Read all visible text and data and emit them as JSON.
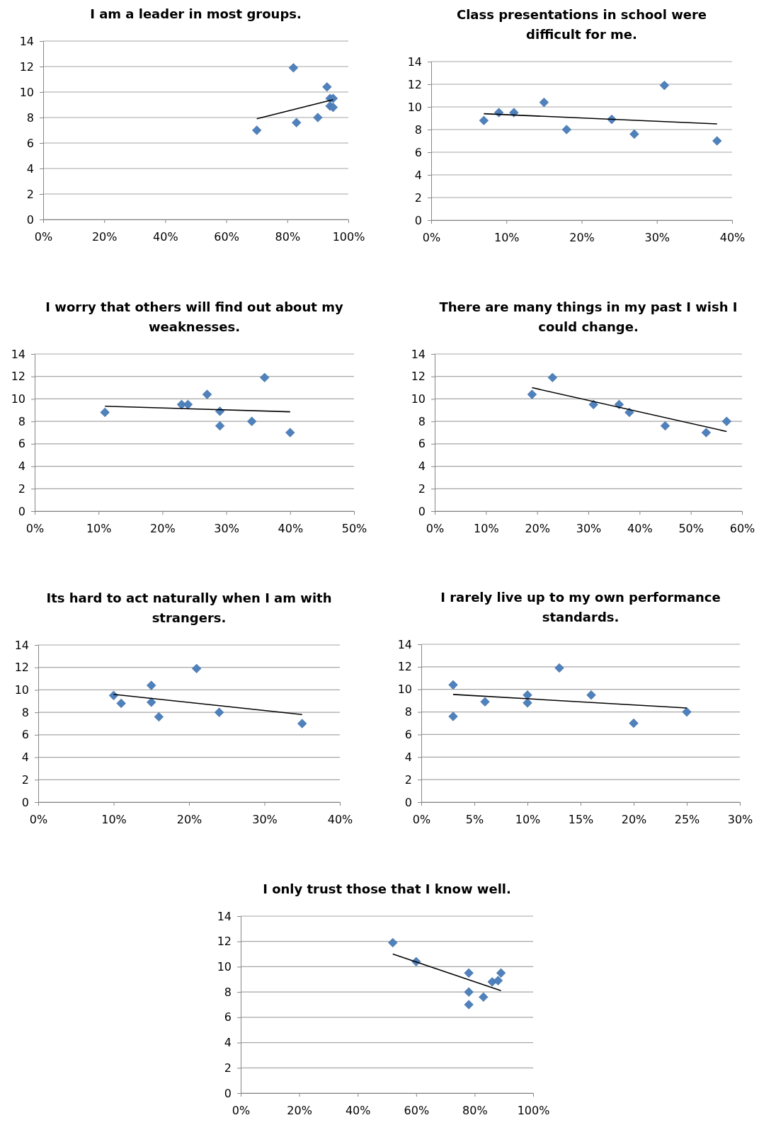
{
  "chart_data": [
    {
      "type": "scatter",
      "title": "I am a leader in most groups.",
      "xlim": [
        0,
        100
      ],
      "xticks": [
        {
          "value": 0,
          "label": "0%"
        },
        {
          "value": 20,
          "label": "20%"
        },
        {
          "value": 40,
          "label": "40%"
        },
        {
          "value": 60,
          "label": "60%"
        },
        {
          "value": 80,
          "label": "80%"
        },
        {
          "value": 100,
          "label": "100%"
        }
      ],
      "ylim": [
        0,
        14
      ],
      "yticks": [
        0,
        2,
        4,
        6,
        8,
        10,
        12,
        14
      ],
      "grid": "y",
      "series": [
        {
          "type": "scatter",
          "color": "#4f81bd",
          "marker": "diamond",
          "x": [
            70,
            82,
            83,
            90,
            93,
            94,
            95,
            94,
            95
          ],
          "values": [
            7.0,
            11.9,
            7.6,
            8.0,
            10.4,
            9.5,
            9.5,
            8.9,
            8.8
          ]
        },
        {
          "type": "line",
          "color": "#000000",
          "marker": "none",
          "line_style": "solid",
          "x": [
            70,
            95
          ],
          "values": [
            7.9,
            9.4
          ]
        }
      ]
    },
    {
      "type": "scatter",
      "title": "Class presentations in school were difficult for me.",
      "xlim": [
        0,
        40
      ],
      "xticks": [
        {
          "value": 0,
          "label": "0%"
        },
        {
          "value": 10,
          "label": "10%"
        },
        {
          "value": 20,
          "label": "20%"
        },
        {
          "value": 30,
          "label": "30%"
        },
        {
          "value": 40,
          "label": "40%"
        }
      ],
      "ylim": [
        0,
        14
      ],
      "yticks": [
        0,
        2,
        4,
        6,
        8,
        10,
        12,
        14
      ],
      "grid": "y",
      "series": [
        {
          "type": "scatter",
          "color": "#4f81bd",
          "marker": "diamond",
          "x": [
            7,
            9,
            11,
            15,
            18,
            24,
            27,
            31,
            38
          ],
          "values": [
            8.8,
            9.5,
            9.5,
            10.4,
            8.0,
            8.9,
            7.6,
            11.9,
            7.0
          ]
        },
        {
          "type": "line",
          "color": "#000000",
          "marker": "none",
          "line_style": "solid",
          "x": [
            7,
            38
          ],
          "values": [
            9.4,
            8.5
          ]
        }
      ]
    },
    {
      "type": "scatter",
      "title": "I worry that others will find out about my weaknesses.",
      "xlim": [
        0,
        50
      ],
      "xticks": [
        {
          "value": 0,
          "label": "0%"
        },
        {
          "value": 10,
          "label": "10%"
        },
        {
          "value": 20,
          "label": "20%"
        },
        {
          "value": 30,
          "label": "30%"
        },
        {
          "value": 40,
          "label": "40%"
        },
        {
          "value": 50,
          "label": "50%"
        }
      ],
      "ylim": [
        0,
        14
      ],
      "yticks": [
        0,
        2,
        4,
        6,
        8,
        10,
        12,
        14
      ],
      "grid": "y",
      "series": [
        {
          "type": "scatter",
          "color": "#4f81bd",
          "marker": "diamond",
          "x": [
            11,
            23,
            24,
            27,
            29,
            29,
            34,
            36,
            40
          ],
          "values": [
            8.8,
            9.5,
            9.5,
            10.4,
            8.9,
            7.6,
            8.0,
            11.9,
            7.0
          ]
        },
        {
          "type": "line",
          "color": "#000000",
          "marker": "none",
          "line_style": "solid",
          "x": [
            11,
            40
          ],
          "values": [
            9.35,
            8.85
          ]
        }
      ]
    },
    {
      "type": "scatter",
      "title": "There are many things in my past I wish I could change.",
      "xlim": [
        0,
        60
      ],
      "xticks": [
        {
          "value": 0,
          "label": "0%"
        },
        {
          "value": 10,
          "label": "10%"
        },
        {
          "value": 20,
          "label": "20%"
        },
        {
          "value": 30,
          "label": "30%"
        },
        {
          "value": 40,
          "label": "40%"
        },
        {
          "value": 50,
          "label": "50%"
        },
        {
          "value": 60,
          "label": "60%"
        }
      ],
      "ylim": [
        0,
        14
      ],
      "yticks": [
        0,
        2,
        4,
        6,
        8,
        10,
        12,
        14
      ],
      "grid": "y",
      "series": [
        {
          "type": "scatter",
          "color": "#4f81bd",
          "marker": "diamond",
          "x": [
            19,
            23,
            31,
            36,
            38,
            45,
            53,
            57
          ],
          "values": [
            10.4,
            11.9,
            9.5,
            9.5,
            8.8,
            7.6,
            7.0,
            8.0
          ]
        },
        {
          "type": "line",
          "color": "#000000",
          "marker": "none",
          "line_style": "solid",
          "x": [
            19,
            57
          ],
          "values": [
            11.0,
            7.1
          ]
        }
      ]
    },
    {
      "type": "scatter",
      "title": "Its hard to act naturally when I am with strangers.",
      "xlim": [
        0,
        40
      ],
      "xticks": [
        {
          "value": 0,
          "label": "0%"
        },
        {
          "value": 10,
          "label": "10%"
        },
        {
          "value": 20,
          "label": "20%"
        },
        {
          "value": 30,
          "label": "30%"
        },
        {
          "value": 40,
          "label": "40%"
        }
      ],
      "ylim": [
        0,
        14
      ],
      "yticks": [
        0,
        2,
        4,
        6,
        8,
        10,
        12,
        14
      ],
      "grid": "y",
      "series": [
        {
          "type": "scatter",
          "color": "#4f81bd",
          "marker": "diamond",
          "x": [
            10,
            11,
            15,
            15,
            16,
            21,
            24,
            35
          ],
          "values": [
            9.5,
            8.8,
            10.4,
            8.9,
            7.6,
            11.9,
            8.0,
            7.0
          ]
        },
        {
          "type": "line",
          "color": "#000000",
          "marker": "none",
          "line_style": "solid",
          "x": [
            10,
            35
          ],
          "values": [
            9.6,
            7.8
          ]
        }
      ]
    },
    {
      "type": "scatter",
      "title": "I rarely live up to my own performance standards.",
      "xlim": [
        0,
        30
      ],
      "xticks": [
        {
          "value": 0,
          "label": "0%"
        },
        {
          "value": 5,
          "label": "5%"
        },
        {
          "value": 10,
          "label": "10%"
        },
        {
          "value": 15,
          "label": "15%"
        },
        {
          "value": 20,
          "label": "20%"
        },
        {
          "value": 25,
          "label": "25%"
        },
        {
          "value": 30,
          "label": "30%"
        }
      ],
      "ylim": [
        0,
        14
      ],
      "yticks": [
        0,
        2,
        4,
        6,
        8,
        10,
        12,
        14
      ],
      "grid": "y",
      "series": [
        {
          "type": "scatter",
          "color": "#4f81bd",
          "marker": "diamond",
          "x": [
            3,
            3,
            6,
            10,
            10,
            13,
            16,
            20,
            25
          ],
          "values": [
            10.4,
            7.6,
            8.9,
            9.5,
            8.8,
            11.9,
            9.5,
            7.0,
            8.0
          ]
        },
        {
          "type": "line",
          "color": "#000000",
          "marker": "none",
          "line_style": "solid",
          "x": [
            3,
            25
          ],
          "values": [
            9.55,
            8.35
          ]
        }
      ]
    },
    {
      "type": "scatter",
      "title": "I only trust those that I know well.",
      "xlim": [
        0,
        100
      ],
      "xticks": [
        {
          "value": 0,
          "label": "0%"
        },
        {
          "value": 20,
          "label": "20%"
        },
        {
          "value": 40,
          "label": "40%"
        },
        {
          "value": 60,
          "label": "60%"
        },
        {
          "value": 80,
          "label": "80%"
        },
        {
          "value": 100,
          "label": "100%"
        }
      ],
      "ylim": [
        0,
        14
      ],
      "yticks": [
        0,
        2,
        4,
        6,
        8,
        10,
        12,
        14
      ],
      "grid": "y",
      "series": [
        {
          "type": "scatter",
          "color": "#4f81bd",
          "marker": "diamond",
          "x": [
            52,
            60,
            78,
            78,
            78,
            83,
            86,
            88,
            89
          ],
          "values": [
            11.9,
            10.4,
            9.5,
            8.0,
            7.0,
            7.6,
            8.8,
            8.9,
            9.5
          ]
        },
        {
          "type": "line",
          "color": "#000000",
          "marker": "none",
          "line_style": "solid",
          "x": [
            52,
            89
          ],
          "values": [
            11.0,
            8.1
          ]
        }
      ]
    }
  ]
}
